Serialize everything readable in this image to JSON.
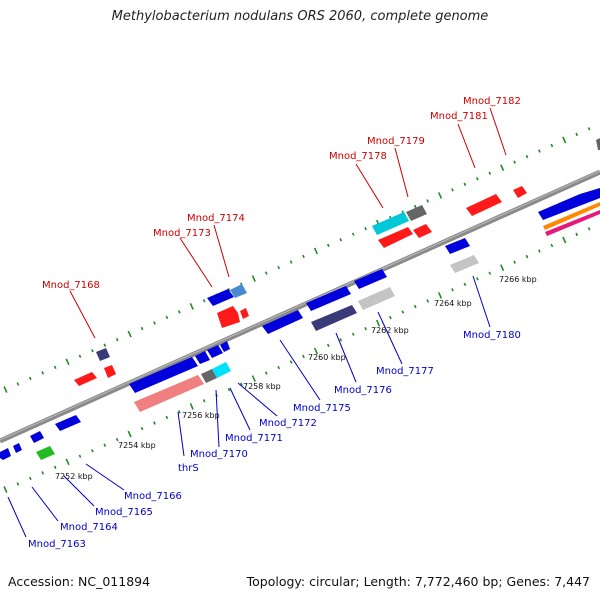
{
  "title": "Methylobacterium nodulans ORS 2060, complete genome",
  "footer": {
    "accession": "Accession: NC_011894",
    "summary": "Topology: circular; Length: 7,772,460 bp; Genes: 7,447"
  },
  "colors": {
    "forward_label": "#cc0000",
    "reverse_label": "#0000cc",
    "backbone": "#8a8a8a",
    "tick": "#228b22"
  },
  "scale_labels": [
    "7252 kbp",
    "7254 kbp",
    "7256 kbp",
    "7258 kbp",
    "7260 kbp",
    "7262 kbp",
    "7264 kbp",
    "7266 kbp"
  ],
  "forward_genes": [
    "Mnod_7168",
    "Mnod_7173",
    "Mnod_7174",
    "Mnod_7178",
    "Mnod_7179",
    "Mnod_7181",
    "Mnod_7182"
  ],
  "reverse_genes": [
    "Mnod_7163",
    "Mnod_7164",
    "Mnod_7165",
    "Mnod_7166",
    "thrS",
    "Mnod_7170",
    "Mnod_7171",
    "Mnod_7172",
    "Mnod_7175",
    "Mnod_7176",
    "Mnod_7177",
    "Mnod_7180"
  ]
}
